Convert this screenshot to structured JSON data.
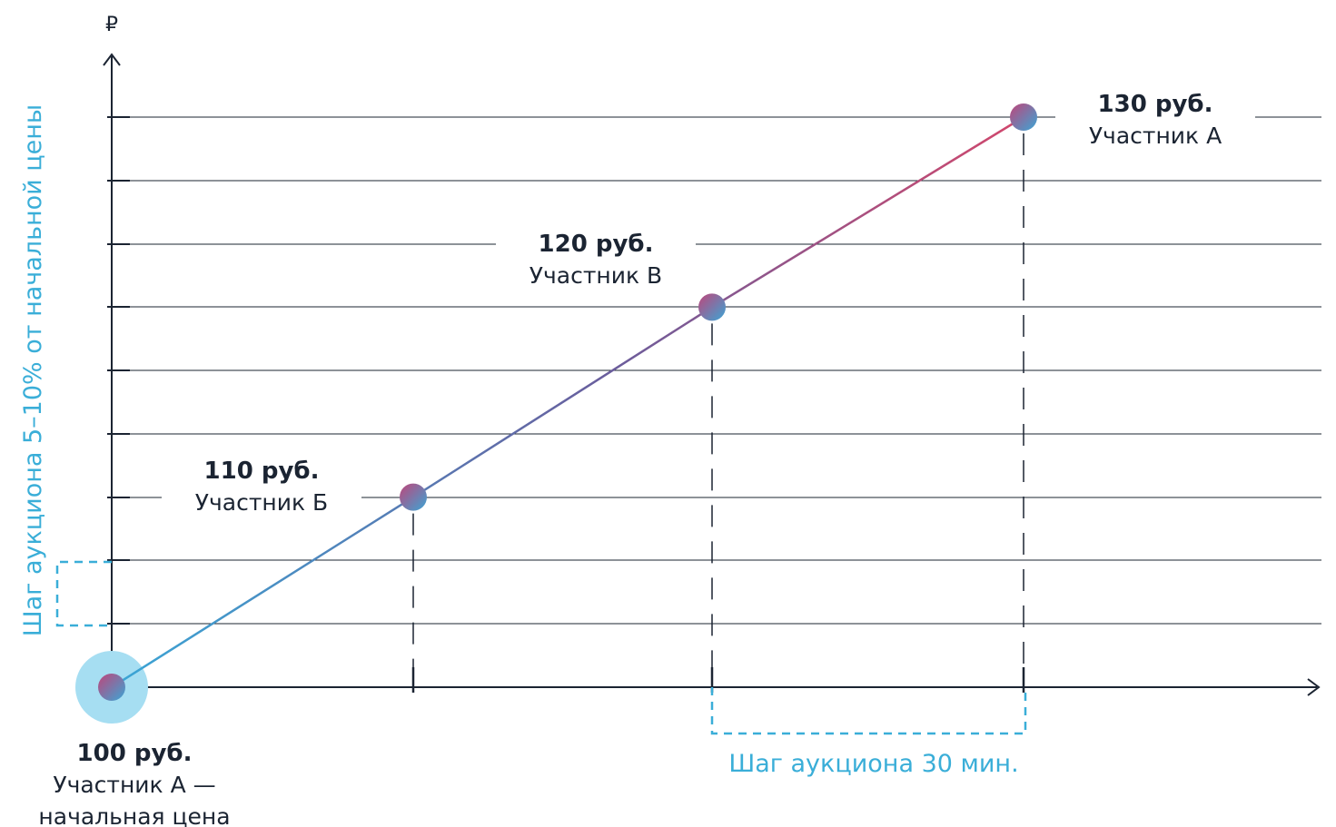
{
  "chart_data": {
    "type": "line",
    "y_unit": "₽",
    "y_label": "Шаг аукциона 5–10% от начальной цены",
    "x_label": "Шаг аукциона 30 мин.",
    "ylim": [
      100,
      135
    ],
    "grid": true,
    "points": [
      {
        "step": 0,
        "price": 100,
        "price_label": "100 руб.",
        "participant": "Участник А —",
        "note": "начальная цена"
      },
      {
        "step": 1,
        "price": 110,
        "price_label": "110 руб.",
        "participant": "Участник Б"
      },
      {
        "step": 2,
        "price": 120,
        "price_label": "120 руб.",
        "participant": "Участник В"
      },
      {
        "step": 3,
        "price": 130,
        "price_label": "130 руб.",
        "participant": "Участник А"
      }
    ]
  },
  "colors": {
    "axis": "#1b2432",
    "accent": "#3aaed8",
    "highlight": "#a6def2",
    "line_start": "#3aa6d6",
    "line_end": "#d2476c"
  }
}
